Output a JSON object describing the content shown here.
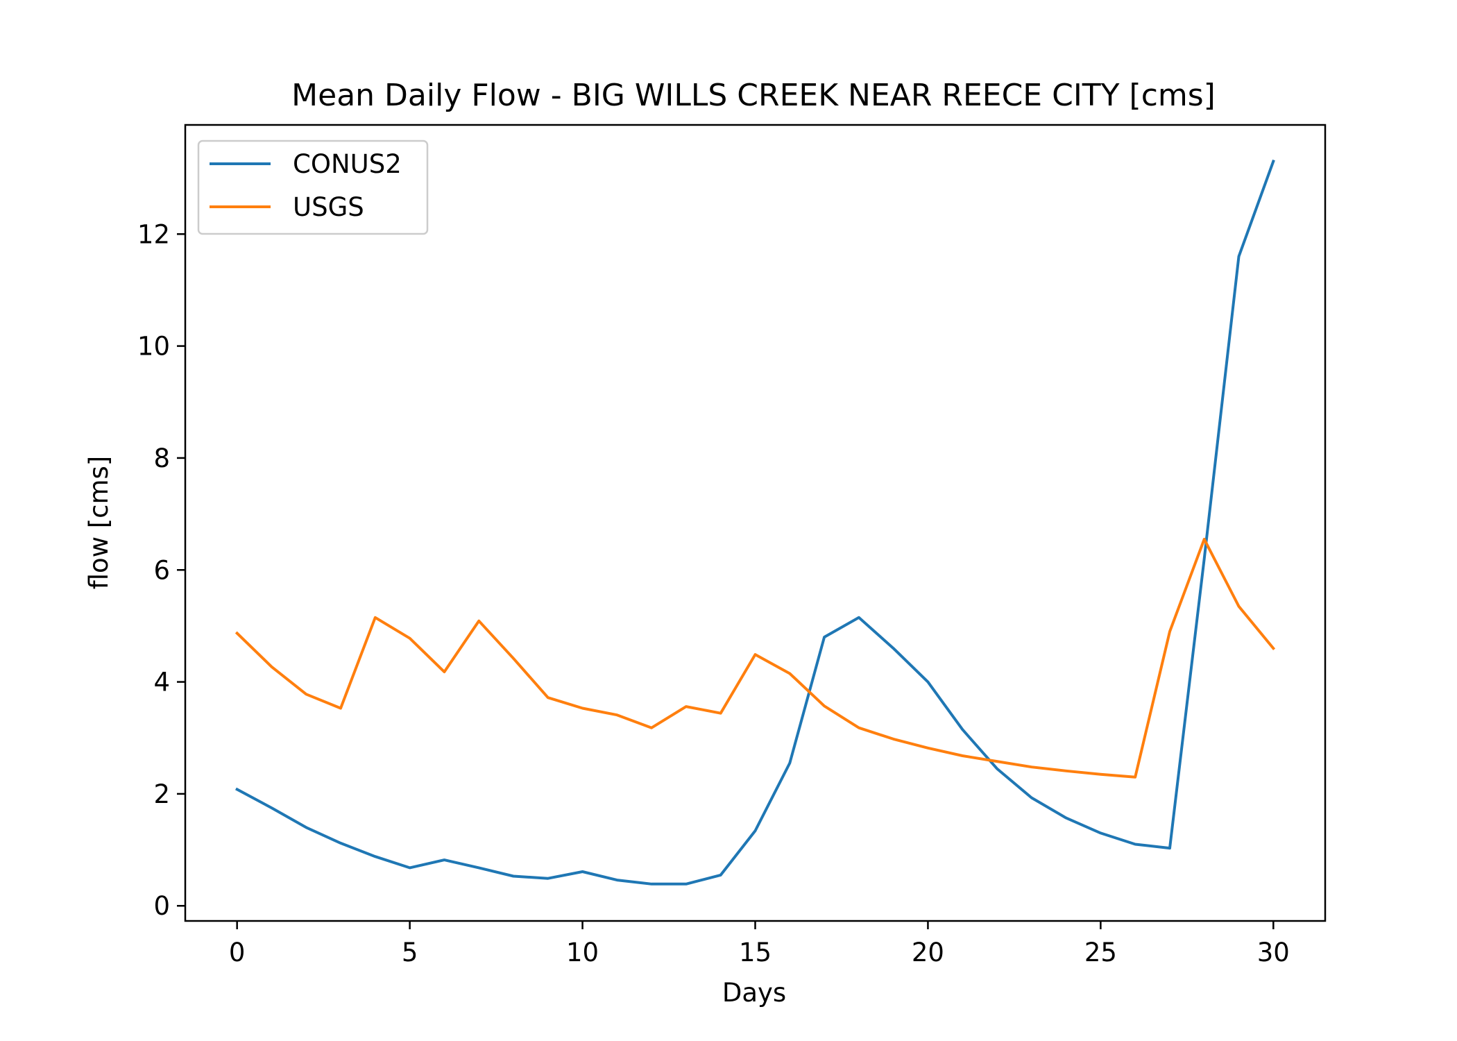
{
  "chart_data": {
    "type": "line",
    "title": "Mean Daily Flow - BIG WILLS CREEK NEAR REECE CITY [cms]",
    "xlabel": "Days",
    "ylabel": "flow [cms]",
    "xlim": [
      -1.5,
      31.5
    ],
    "ylim": [
      -0.27,
      13.95
    ],
    "xticks": [
      0,
      5,
      10,
      15,
      20,
      25,
      30
    ],
    "yticks": [
      0,
      2,
      4,
      6,
      8,
      10,
      12
    ],
    "grid": false,
    "legend_position": "upper left",
    "x": [
      0,
      1,
      2,
      3,
      4,
      5,
      6,
      7,
      8,
      9,
      10,
      11,
      12,
      13,
      14,
      15,
      16,
      17,
      18,
      19,
      20,
      21,
      22,
      23,
      24,
      25,
      26,
      27,
      28,
      29,
      30
    ],
    "series": [
      {
        "name": "CONUS2",
        "color": "#1f77b4",
        "values": [
          2.08,
          1.75,
          1.4,
          1.12,
          0.88,
          0.68,
          0.82,
          0.68,
          0.53,
          0.49,
          0.61,
          0.46,
          0.39,
          0.39,
          0.55,
          1.34,
          2.55,
          4.8,
          5.15,
          4.6,
          4.0,
          3.15,
          2.45,
          1.93,
          1.57,
          1.3,
          1.1,
          1.03,
          6.2,
          11.6,
          13.3
        ]
      },
      {
        "name": "USGS",
        "color": "#ff7f0e",
        "values": [
          4.87,
          4.27,
          3.78,
          3.53,
          5.15,
          4.78,
          4.18,
          5.09,
          4.42,
          3.72,
          3.53,
          3.41,
          3.18,
          3.56,
          3.44,
          4.49,
          4.15,
          3.57,
          3.18,
          2.98,
          2.82,
          2.68,
          2.58,
          2.48,
          2.41,
          2.35,
          2.3,
          4.9,
          6.55,
          5.35,
          4.6
        ]
      }
    ]
  }
}
